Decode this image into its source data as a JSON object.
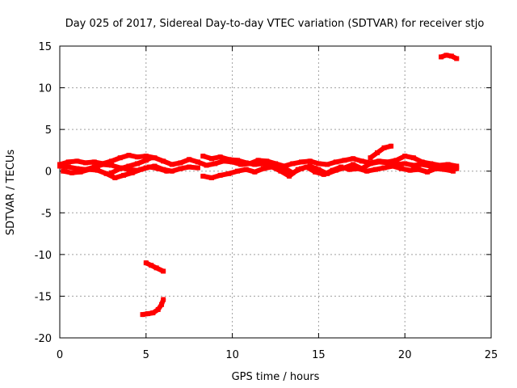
{
  "chart_data": {
    "type": "scatter",
    "title": "Day 025 of 2017, Sidereal Day-to-day VTEC variation (SDTVAR) for receiver stjo",
    "xlabel": "GPS time / hours",
    "ylabel": "SDTVAR / TECUs",
    "xlim": [
      0,
      25
    ],
    "ylim": [
      -20,
      15
    ],
    "x_ticks": [
      "0",
      "5",
      "10",
      "15",
      "20",
      "25"
    ],
    "y_ticks": [
      "-20",
      "-15",
      "-10",
      "-5",
      "0",
      "5",
      "10",
      "15"
    ],
    "grid": true,
    "legend": "none",
    "series_color": "#ff0000",
    "series": [
      {
        "x": [
          0.0,
          0.5,
          1.0,
          1.5,
          2.0,
          2.5,
          3.0,
          3.5,
          4.0,
          4.5,
          5.0,
          5.5,
          6.0,
          6.5,
          7.0,
          7.5,
          8.0,
          8.5,
          9.0,
          9.5,
          10.0,
          10.5,
          11.0,
          11.5,
          12.0,
          12.5,
          13.0,
          13.5,
          14.0,
          14.5,
          15.0,
          15.5,
          16.0,
          16.5,
          17.0,
          17.5,
          18.0,
          18.5,
          19.0,
          19.5,
          20.0,
          20.5,
          21.0,
          21.5,
          22.0,
          22.5,
          23.0
        ],
        "y": [
          0.8,
          1.1,
          1.2,
          1.0,
          1.1,
          0.9,
          1.2,
          1.6,
          1.9,
          1.7,
          1.8,
          1.6,
          1.2,
          0.8,
          1.0,
          1.4,
          1.1,
          0.7,
          0.9,
          1.2,
          1.1,
          0.8,
          0.9,
          1.3,
          1.2,
          0.9,
          0.6,
          0.9,
          1.1,
          1.2,
          0.9,
          0.8,
          1.1,
          1.3,
          1.5,
          1.2,
          1.0,
          1.2,
          1.1,
          1.3,
          1.8,
          1.6,
          1.1,
          0.9,
          0.7,
          0.8,
          0.6
        ]
      },
      {
        "x": [
          0.0,
          0.5,
          1.0,
          1.5,
          2.0,
          2.5,
          3.0,
          3.5,
          4.0,
          4.5,
          5.0,
          5.5,
          6.0,
          6.5,
          7.0,
          7.5,
          8.0
        ],
        "y": [
          0.6,
          0.5,
          0.3,
          0.2,
          0.5,
          0.8,
          0.7,
          0.4,
          0.2,
          0.1,
          0.4,
          0.6,
          0.2,
          0.0,
          0.3,
          0.5,
          0.4
        ]
      },
      {
        "x": [
          0.2,
          0.7,
          1.2,
          1.7,
          2.2,
          2.7,
          3.2,
          3.7,
          4.2,
          4.7,
          5.2,
          5.7,
          6.2
        ],
        "y": [
          0.0,
          -0.2,
          -0.1,
          0.2,
          0.1,
          -0.3,
          -0.8,
          -0.5,
          -0.2,
          0.2,
          0.5,
          0.3,
          0.0
        ]
      },
      {
        "x": [
          3.0,
          3.5,
          4.0,
          4.5,
          5.0,
          5.3
        ],
        "y": [
          -0.2,
          0.3,
          0.6,
          0.9,
          1.3,
          1.6
        ]
      },
      {
        "x": [
          8.3,
          8.8,
          9.3,
          9.8,
          10.3,
          10.8,
          11.3,
          11.8,
          12.3
        ],
        "y": [
          1.8,
          1.5,
          1.7,
          1.4,
          1.3,
          1.0,
          0.8,
          0.9,
          0.6
        ]
      },
      {
        "x": [
          8.3,
          8.8,
          9.3,
          9.8,
          10.3,
          10.8,
          11.3,
          11.8,
          12.3,
          12.8,
          13.3,
          13.8,
          14.3,
          14.8,
          15.3,
          15.8,
          16.3,
          16.8,
          17.3,
          17.8,
          18.3,
          18.8,
          19.3,
          19.8,
          20.3,
          20.8,
          21.3,
          21.8,
          22.3,
          22.8
        ],
        "y": [
          -0.6,
          -0.8,
          -0.5,
          -0.3,
          0.0,
          0.2,
          -0.1,
          0.3,
          0.5,
          0.0,
          -0.6,
          0.2,
          0.5,
          -0.1,
          -0.4,
          0.1,
          0.5,
          0.2,
          0.3,
          0.0,
          0.2,
          0.4,
          0.6,
          0.3,
          0.1,
          0.2,
          -0.1,
          0.3,
          0.2,
          0.0
        ]
      },
      {
        "x": [
          12.5,
          13.0,
          13.5,
          14.0,
          14.5,
          15.0,
          15.5,
          16.0,
          16.5,
          17.0,
          17.5,
          18.0,
          18.5,
          19.0,
          19.5,
          20.0,
          20.5,
          21.0,
          21.5,
          22.0,
          22.5,
          23.0
        ],
        "y": [
          0.8,
          0.4,
          -0.2,
          0.3,
          0.6,
          0.2,
          -0.3,
          0.1,
          0.4,
          0.8,
          0.3,
          0.9,
          1.1,
          1.0,
          0.8,
          0.9,
          0.7,
          0.8,
          0.6,
          0.5,
          0.4,
          0.3
        ]
      },
      {
        "x": [
          18.0,
          18.4,
          18.8,
          19.2
        ],
        "y": [
          1.6,
          2.2,
          2.8,
          3.0
        ]
      },
      {
        "x": [
          22.1,
          22.4,
          22.7,
          23.0
        ],
        "y": [
          13.7,
          13.9,
          13.8,
          13.5
        ]
      },
      {
        "x": [
          5.0,
          5.3,
          5.6,
          6.0
        ],
        "y": [
          -11.0,
          -11.3,
          -11.6,
          -12.0
        ]
      },
      {
        "x": [
          4.8,
          5.1,
          5.4,
          5.7,
          5.9,
          6.0
        ],
        "y": [
          -17.2,
          -17.1,
          -17.0,
          -16.6,
          -16.0,
          -15.4
        ]
      }
    ]
  }
}
